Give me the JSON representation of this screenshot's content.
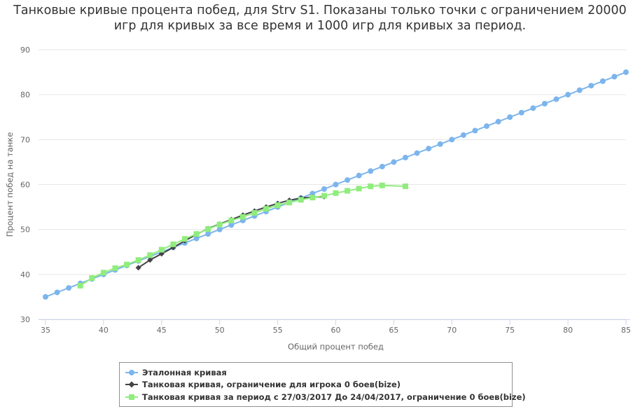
{
  "title_line1": "Танковые кривые процента побед, для Strv S1. Показаны только точки с ограничением 20000",
  "title_line2": "игр для кривых за все время и 1000 игр для кривых за период.",
  "chart_data": {
    "type": "line",
    "title": "Танковые кривые процента побед, для Strv S1. Показаны только точки с ограничением 20000 игр для кривых за все время и 1000 игр для кривых за период.",
    "xlabel": "Общий процент побед",
    "ylabel": "Процент побед на танке",
    "xlim": [
      35,
      85
    ],
    "ylim": [
      30,
      90
    ],
    "xticks": [
      "35",
      "40",
      "45",
      "50",
      "55",
      "60",
      "65",
      "70",
      "75",
      "80",
      "85"
    ],
    "yticks": [
      "30",
      "40",
      "50",
      "60",
      "70",
      "80",
      "90"
    ],
    "grid": "horizontal",
    "legend_position": "bottom",
    "series": [
      {
        "name": "Эталонная кривая",
        "color": "#7cb5ec",
        "marker": "circle",
        "x": [
          35,
          36,
          37,
          38,
          39,
          40,
          41,
          42,
          43,
          44,
          45,
          46,
          47,
          48,
          49,
          50,
          51,
          52,
          53,
          54,
          55,
          56,
          57,
          58,
          59,
          60,
          61,
          62,
          63,
          64,
          65,
          66,
          67,
          68,
          69,
          70,
          71,
          72,
          73,
          74,
          75,
          76,
          77,
          78,
          79,
          80,
          81,
          82,
          83,
          84,
          85
        ],
        "y": [
          35,
          36,
          37,
          38,
          39,
          40,
          41,
          42,
          43,
          44,
          45,
          46,
          47,
          48,
          49,
          50,
          51,
          52,
          53,
          54,
          55,
          56,
          57,
          58,
          59,
          60,
          61,
          62,
          63,
          64,
          65,
          66,
          67,
          68,
          69,
          70,
          71,
          72,
          73,
          74,
          75,
          76,
          77,
          78,
          79,
          80,
          81,
          82,
          83,
          84,
          85
        ]
      },
      {
        "name": "Танковая кривая, ограничение для игрока 0 боев(bize)",
        "color": "#434348",
        "marker": "diamond",
        "x": [
          43,
          44,
          45,
          46,
          47,
          48,
          49,
          50,
          51,
          52,
          53,
          54,
          55,
          56,
          57,
          58,
          59
        ],
        "y": [
          41.5,
          43.2,
          44.6,
          46.0,
          47.5,
          48.9,
          50.2,
          51.2,
          52.2,
          53.2,
          54.1,
          55.0,
          55.8,
          56.5,
          57.0,
          57.2,
          57.3
        ]
      },
      {
        "name": "Танковая кривая за период с 27/03/2017 До 24/04/2017, ограничение 0 боев(bize)",
        "color": "#90ed7d",
        "marker": "square",
        "x": [
          38,
          39,
          40,
          41,
          42,
          43,
          44,
          45,
          46,
          47,
          48,
          49,
          50,
          51,
          52,
          53,
          54,
          55,
          56,
          57,
          58,
          59,
          60,
          61,
          62,
          63,
          64,
          66
        ],
        "y": [
          37.5,
          39.2,
          40.4,
          41.4,
          42.2,
          43.2,
          44.3,
          45.5,
          46.7,
          47.9,
          49.0,
          50.1,
          51.1,
          52.0,
          52.8,
          53.7,
          54.6,
          55.4,
          56.0,
          56.6,
          57.1,
          57.5,
          58.1,
          58.6,
          59.1,
          59.6,
          59.8,
          59.6
        ]
      }
    ]
  }
}
